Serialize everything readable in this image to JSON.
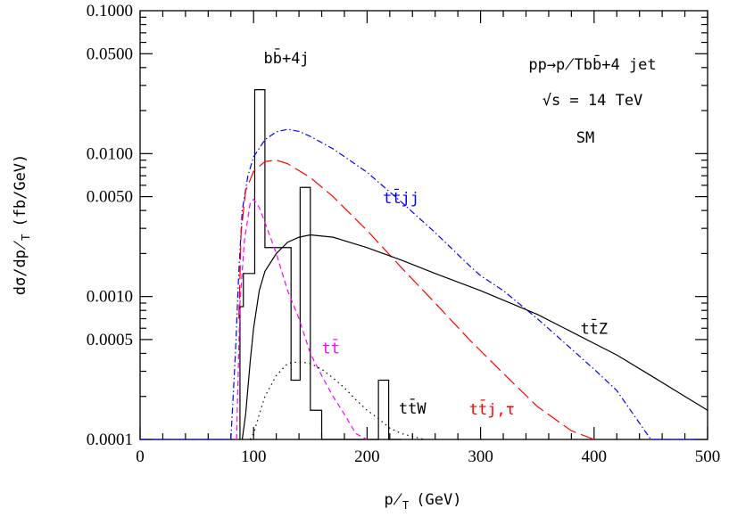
{
  "chart_data": {
    "type": "line",
    "x_axis": {
      "label": "p̸T (GeV)",
      "label_main": "p̸",
      "label_sub": "T",
      "label_unit": "(GeV)",
      "range": [
        0,
        500
      ],
      "ticks": [
        0,
        100,
        200,
        300,
        400,
        500
      ],
      "tick_labels": [
        "0",
        "100",
        "200",
        "300",
        "400",
        "500"
      ]
    },
    "y_axis": {
      "label": "dσ/dp̸T (fb/GeV)",
      "label_main": "dσ/dp̸",
      "label_sub": "T",
      "label_unit": "(fb/GeV)",
      "scale": "log",
      "range": [
        0.0001,
        0.1
      ],
      "ticks": [
        0.0001,
        0.0005,
        0.001,
        0.005,
        0.01,
        0.05,
        0.1
      ],
      "tick_labels": [
        "0.0001",
        "0.0005",
        "0.0010",
        "0.0050",
        "0.0100",
        "0.0500",
        "0.1000"
      ]
    },
    "annotations": {
      "process": "pp→p̸Tbb̄+4 jet",
      "energy": "√s = 14 TeV",
      "model": "SM"
    },
    "series": [
      {
        "name": "bb̄+4j",
        "style": "histogram",
        "color": "#000000",
        "bins": [
          {
            "x0": 88,
            "x1": 91,
            "y": 0.00085
          },
          {
            "x0": 91,
            "x1": 101,
            "y": 0.00145
          },
          {
            "x0": 101,
            "x1": 110,
            "y": 0.028
          },
          {
            "x0": 110,
            "x1": 118,
            "y": 0.0022
          },
          {
            "x0": 118,
            "x1": 133,
            "y": 0.0022
          },
          {
            "x0": 133,
            "x1": 141,
            "y": 0.00026
          },
          {
            "x0": 141,
            "x1": 150,
            "y": 0.0058
          },
          {
            "x0": 150,
            "x1": 160,
            "y": 0.00016
          },
          {
            "x0": 160,
            "x1": 210,
            "y": 0.0001
          },
          {
            "x0": 210,
            "x1": 219,
            "y": 0.00026
          },
          {
            "x0": 219,
            "x1": 230,
            "y": 0.0001
          }
        ],
        "label_x": 129,
        "label_y": 0.043
      },
      {
        "name": "tt̄jj",
        "style": "dashdot",
        "color": "#0000ff",
        "x": [
          0,
          50,
          80,
          84,
          87,
          90,
          95,
          100,
          110,
          120,
          130,
          140,
          150,
          170,
          200,
          230,
          260,
          290,
          300,
          320,
          350,
          380,
          400,
          420,
          440,
          450,
          460,
          480,
          490
        ],
        "y": [
          0.0001,
          0.0001,
          0.0001,
          0.0004,
          0.0015,
          0.004,
          0.007,
          0.0095,
          0.0125,
          0.0142,
          0.0148,
          0.0143,
          0.0132,
          0.0108,
          0.0074,
          0.0046,
          0.0028,
          0.00165,
          0.0014,
          0.0011,
          0.0007,
          0.00043,
          0.00031,
          0.00022,
          0.00013,
          0.0001,
          0.0001,
          0.0001,
          0.0001
        ],
        "label_x": 230,
        "label_y": 0.0045
      },
      {
        "name": "tt̄j,τ",
        "style": "longdash",
        "color": "#ff0000",
        "x": [
          87,
          89,
          93,
          100,
          110,
          120,
          130,
          150,
          170,
          200,
          230,
          260,
          290,
          320,
          350,
          380,
          400
        ],
        "y": [
          0.0007,
          0.0028,
          0.0055,
          0.0075,
          0.0088,
          0.009,
          0.0085,
          0.0068,
          0.005,
          0.0029,
          0.0016,
          0.0009,
          0.0005,
          0.00029,
          0.00017,
          0.000115,
          0.0001
        ],
        "label_x": 310,
        "label_y": 0.00015
      },
      {
        "name": "tt̄Z",
        "style": "solid",
        "color": "#000000",
        "x": [
          90,
          93,
          97,
          100,
          105,
          110,
          120,
          130,
          140,
          150,
          170,
          200,
          230,
          260,
          300,
          350,
          400,
          420,
          450,
          480,
          500
        ],
        "y": [
          0.0001,
          0.00015,
          0.00035,
          0.0006,
          0.0011,
          0.0015,
          0.002,
          0.0024,
          0.0026,
          0.0027,
          0.0026,
          0.0022,
          0.0018,
          0.00145,
          0.0011,
          0.00075,
          0.00047,
          0.00039,
          0.00028,
          0.0002,
          0.00016
        ],
        "label_x": 400,
        "label_y": 0.00055
      },
      {
        "name": "tt̄",
        "style": "shortdash",
        "color": "#ff00ff",
        "x": [
          85,
          88,
          92,
          97,
          100,
          105,
          110,
          120,
          130,
          140,
          150,
          160,
          170,
          180,
          190,
          200
        ],
        "y": [
          0.0001,
          0.0009,
          0.0025,
          0.0045,
          0.0048,
          0.0042,
          0.0033,
          0.002,
          0.0011,
          0.0007,
          0.0004,
          0.00028,
          0.0002,
          0.00015,
          0.00011,
          0.0001
        ],
        "label_x": 168,
        "label_y": 0.0004
      },
      {
        "name": "tt̄W",
        "style": "dotted",
        "color": "#000000",
        "x": [
          97,
          100,
          105,
          110,
          120,
          130,
          140,
          150,
          160,
          170,
          180,
          190,
          200,
          210,
          220,
          230,
          240,
          250
        ],
        "y": [
          0.0001,
          0.00011,
          0.00015,
          0.0002,
          0.00028,
          0.00034,
          0.00035,
          0.00034,
          0.00031,
          0.00027,
          0.00023,
          0.00019,
          0.00016,
          0.00014,
          0.00012,
          0.00011,
          0.000105,
          0.0001
        ],
        "label_x": 240,
        "label_y": 0.000152
      }
    ]
  }
}
